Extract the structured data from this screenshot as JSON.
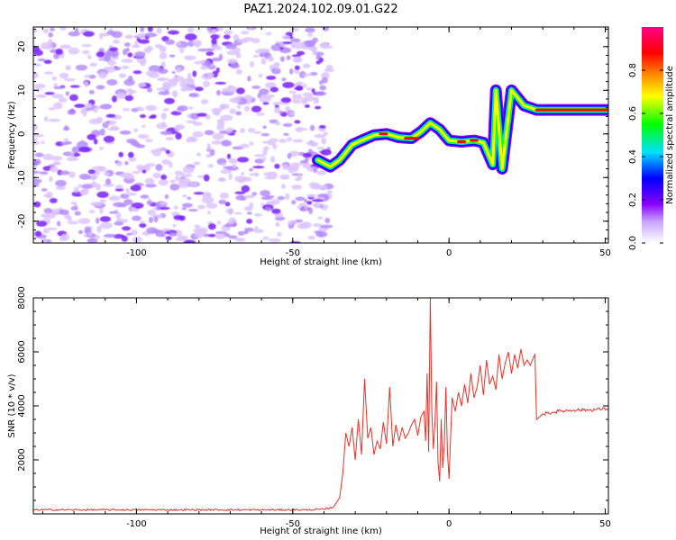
{
  "title": "PAZ1.2024.102.09.01.G22",
  "chart_data": [
    {
      "type": "heatmap",
      "xlabel": "Height of straight line (km)",
      "ylabel": "Frequency (Hz)",
      "xlim": [
        -133,
        51
      ],
      "ylim": [
        -25,
        24.5
      ],
      "xticks": [
        -100,
        -50,
        0,
        50
      ],
      "yticks": [
        -20,
        -10,
        0,
        10,
        20
      ],
      "colorbar": {
        "label": "Normalized spectral amplitude",
        "ticks": [
          0.0,
          0.2,
          0.4,
          0.6,
          0.8
        ],
        "range": [
          0,
          1
        ],
        "colors": [
          "#ffffff",
          "#c8a2ff",
          "#8800ff",
          "#0000ff",
          "#00e0ff",
          "#00ff00",
          "#ffff00",
          "#ff8800",
          "#ff0000",
          "#ff0088"
        ]
      },
      "ridge": [
        {
          "x": -42,
          "y": -6
        },
        {
          "x": -38,
          "y": -7.5
        },
        {
          "x": -35,
          "y": -6
        },
        {
          "x": -31,
          "y": -2.5
        },
        {
          "x": -28,
          "y": -1.5
        },
        {
          "x": -24,
          "y": -0.3
        },
        {
          "x": -20,
          "y": 0
        },
        {
          "x": -16,
          "y": -0.8
        },
        {
          "x": -12,
          "y": -1
        },
        {
          "x": -9,
          "y": 0.5
        },
        {
          "x": -6,
          "y": 2.5
        },
        {
          "x": -3,
          "y": 1
        },
        {
          "x": 0,
          "y": -1.5
        },
        {
          "x": 4,
          "y": -1.8
        },
        {
          "x": 8,
          "y": -1.5
        },
        {
          "x": 11,
          "y": -2
        },
        {
          "x": 14,
          "y": -7
        },
        {
          "x": 15,
          "y": 10
        },
        {
          "x": 17,
          "y": -8
        },
        {
          "x": 20,
          "y": 10
        },
        {
          "x": 24,
          "y": 6.5
        },
        {
          "x": 28,
          "y": 5.5
        },
        {
          "x": 40,
          "y": 5.5
        },
        {
          "x": 51,
          "y": 5.5
        }
      ]
    },
    {
      "type": "line",
      "xlabel": "Height of straight line (km)",
      "ylabel": "SNR (10 * v/v)",
      "xlim": [
        -133,
        51
      ],
      "ylim": [
        0,
        8000
      ],
      "xticks": [
        -100,
        -50,
        0,
        50
      ],
      "yticks": [
        2000,
        4000,
        6000,
        8000
      ],
      "series": [
        {
          "color": "#e8312a",
          "x": [
            -133,
            -120,
            -100,
            -80,
            -60,
            -45,
            -40,
            -37,
            -35,
            -34,
            -33,
            -32,
            -31,
            -30,
            -29,
            -28,
            -27,
            -26,
            -25,
            -24,
            -23,
            -22,
            -21,
            -20,
            -19,
            -18,
            -17,
            -16,
            -15,
            -14,
            -13,
            -12,
            -11,
            -10,
            -9,
            -8,
            -7.5,
            -7,
            -6.5,
            -6,
            -5.5,
            -5,
            -4.5,
            -4,
            -3.5,
            -3,
            -2.5,
            -2,
            -1.5,
            -1,
            -0.5,
            0,
            1,
            2,
            3,
            4,
            5,
            6,
            7,
            8,
            9,
            10,
            11,
            12,
            13,
            14,
            15,
            16,
            17,
            18,
            19,
            20,
            21,
            22,
            23,
            24,
            25,
            26,
            27,
            27.5,
            28,
            30,
            35,
            40,
            45,
            51
          ],
          "y": [
            150,
            150,
            150,
            150,
            150,
            150,
            170,
            250,
            600,
            1500,
            3000,
            2500,
            3200,
            2000,
            3500,
            2200,
            5000,
            2800,
            3200,
            2200,
            2700,
            2400,
            3400,
            2600,
            4700,
            2500,
            3300,
            2700,
            3200,
            2800,
            3000,
            3300,
            3500,
            2900,
            3600,
            3800,
            2700,
            5200,
            2300,
            8000,
            3800,
            2400,
            3400,
            4900,
            1900,
            1200,
            3500,
            1700,
            2600,
            4700,
            2300,
            1300,
            4300,
            3800,
            4500,
            4000,
            4800,
            4100,
            5200,
            4300,
            4700,
            5500,
            4400,
            5700,
            4800,
            5100,
            4600,
            5900,
            5000,
            5600,
            6000,
            5200,
            5900,
            5400,
            6100,
            5500,
            5700,
            5500,
            5800,
            5900,
            3500,
            3700,
            3800,
            3850,
            3850,
            3900
          ]
        }
      ]
    }
  ]
}
